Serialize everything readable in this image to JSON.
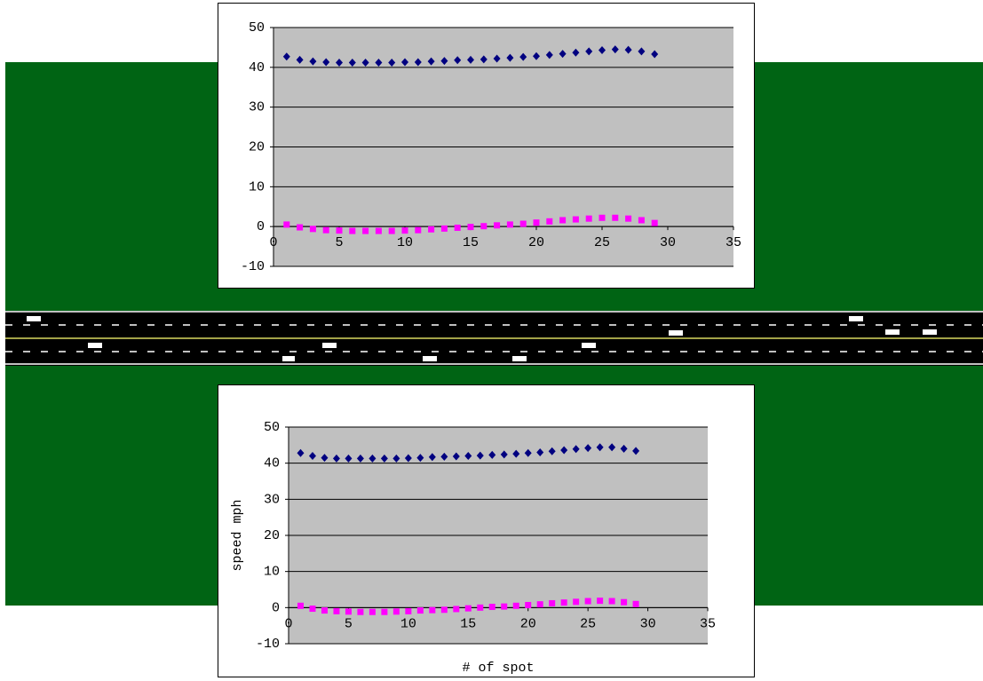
{
  "chart_data": [
    {
      "type": "scatter",
      "x": [
        1,
        2,
        3,
        4,
        5,
        6,
        7,
        8,
        9,
        10,
        11,
        12,
        13,
        14,
        15,
        16,
        17,
        18,
        19,
        20,
        21,
        22,
        23,
        24,
        25,
        26,
        27,
        28,
        29
      ],
      "series": [
        {
          "color": "#000080",
          "marker": "diamond",
          "values": [
            42.7,
            41.9,
            41.5,
            41.3,
            41.2,
            41.2,
            41.2,
            41.2,
            41.2,
            41.3,
            41.3,
            41.5,
            41.6,
            41.8,
            41.9,
            42.0,
            42.2,
            42.4,
            42.6,
            42.8,
            43.1,
            43.4,
            43.7,
            44.0,
            44.3,
            44.5,
            44.4,
            44.0,
            43.3
          ]
        },
        {
          "color": "#ff00ff",
          "marker": "square",
          "values": [
            0.5,
            -0.2,
            -0.6,
            -0.9,
            -1.0,
            -1.1,
            -1.1,
            -1.1,
            -1.1,
            -1.0,
            -0.9,
            -0.7,
            -0.5,
            -0.3,
            -0.1,
            0.1,
            0.3,
            0.5,
            0.7,
            1.0,
            1.3,
            1.6,
            1.8,
            2.0,
            2.2,
            2.2,
            2.0,
            1.6,
            0.9
          ]
        }
      ],
      "xlim": [
        0,
        35
      ],
      "xticks": [
        0,
        5,
        10,
        15,
        20,
        25,
        30,
        35
      ],
      "ylim": [
        -10,
        50
      ],
      "yticks": [
        -10,
        0,
        10,
        20,
        30,
        40,
        50
      ],
      "grid": true,
      "plot_background": "#c0c0c0"
    },
    {
      "type": "scatter",
      "x_label": "# of spot",
      "y_label": "speed mph",
      "x": [
        1,
        2,
        3,
        4,
        5,
        6,
        7,
        8,
        9,
        10,
        11,
        12,
        13,
        14,
        15,
        16,
        17,
        18,
        19,
        20,
        21,
        22,
        23,
        24,
        25,
        26,
        27,
        28,
        29
      ],
      "series": [
        {
          "color": "#000080",
          "marker": "diamond",
          "values": [
            42.8,
            42.0,
            41.5,
            41.3,
            41.3,
            41.3,
            41.3,
            41.3,
            41.3,
            41.4,
            41.5,
            41.7,
            41.8,
            41.9,
            42.0,
            42.1,
            42.3,
            42.4,
            42.6,
            42.8,
            43.0,
            43.3,
            43.6,
            43.9,
            44.2,
            44.4,
            44.4,
            44.0,
            43.4
          ]
        },
        {
          "color": "#ff00ff",
          "marker": "square",
          "values": [
            0.5,
            -0.3,
            -0.8,
            -1.0,
            -1.1,
            -1.2,
            -1.2,
            -1.2,
            -1.1,
            -1.0,
            -0.8,
            -0.7,
            -0.6,
            -0.4,
            -0.2,
            0.0,
            0.2,
            0.3,
            0.5,
            0.7,
            0.9,
            1.2,
            1.4,
            1.6,
            1.8,
            1.9,
            1.8,
            1.5,
            1.0
          ]
        }
      ],
      "xlim": [
        0,
        35
      ],
      "xticks": [
        0,
        5,
        10,
        15,
        20,
        25,
        30,
        35
      ],
      "ylim": [
        -10,
        50
      ],
      "yticks": [
        -10,
        0,
        10,
        20,
        30,
        40,
        50
      ],
      "grid": true,
      "plot_background": "#c0c0c0"
    }
  ]
}
